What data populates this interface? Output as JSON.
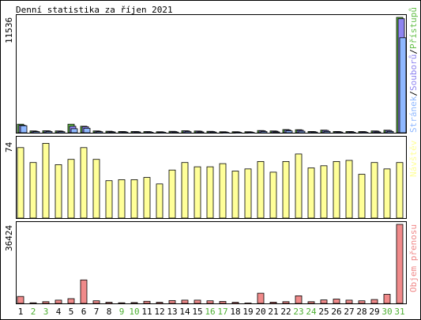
{
  "colors": {
    "background": "#ffffff",
    "frame": "#000000",
    "pages": "#8fb8ff",
    "files": "#8e84f0",
    "hits": "#66c04b",
    "visits": "#ffff99",
    "bytes": "#f08a8a",
    "weekend_label": "#4cae31"
  },
  "chart_data": [
    {
      "type": "bar",
      "title": "Denní statistika za říjen 2021",
      "y_max_label": "11536",
      "ylim": [
        0,
        11536
      ],
      "categories": [
        "1",
        "2",
        "3",
        "4",
        "5",
        "6",
        "7",
        "8",
        "9",
        "10",
        "11",
        "12",
        "13",
        "14",
        "15",
        "16",
        "17",
        "18",
        "19",
        "20",
        "21",
        "22",
        "23",
        "24",
        "25",
        "26",
        "27",
        "28",
        "29",
        "30",
        "31"
      ],
      "weekend_days": [
        "2",
        "3",
        "9",
        "10",
        "16",
        "17",
        "23",
        "24",
        "30",
        "31"
      ],
      "legend": "right (vertical)",
      "series": [
        {
          "name": "Přístupů",
          "color_key": "hits",
          "values": [
            850,
            180,
            200,
            180,
            850,
            650,
            180,
            150,
            130,
            130,
            120,
            100,
            140,
            200,
            170,
            140,
            100,
            100,
            100,
            220,
            180,
            320,
            300,
            130,
            260,
            130,
            130,
            120,
            180,
            250,
            11536
          ]
        },
        {
          "name": "Souborů",
          "color_key": "files",
          "values": [
            750,
            150,
            180,
            160,
            650,
            600,
            150,
            120,
            110,
            120,
            100,
            80,
            120,
            180,
            150,
            120,
            80,
            80,
            80,
            200,
            150,
            280,
            250,
            110,
            230,
            110,
            110,
            100,
            160,
            220,
            11400
          ]
        },
        {
          "name": "Stránek",
          "color_key": "pages",
          "values": [
            700,
            110,
            120,
            100,
            400,
            450,
            100,
            80,
            60,
            80,
            50,
            40,
            60,
            100,
            80,
            60,
            30,
            30,
            30,
            120,
            80,
            180,
            150,
            60,
            130,
            60,
            50,
            40,
            80,
            130,
            9500
          ]
        }
      ]
    },
    {
      "type": "bar",
      "y_max_label": "74",
      "ylim": [
        0,
        74
      ],
      "categories": [
        "1",
        "2",
        "3",
        "4",
        "5",
        "6",
        "7",
        "8",
        "9",
        "10",
        "11",
        "12",
        "13",
        "14",
        "15",
        "16",
        "17",
        "18",
        "19",
        "20",
        "21",
        "22",
        "23",
        "24",
        "25",
        "26",
        "27",
        "28",
        "29",
        "30",
        "31"
      ],
      "legend": "right (vertical)",
      "series": [
        {
          "name": "Návštěv",
          "color_key": "visits",
          "values": [
            66,
            52,
            70,
            50,
            55,
            66,
            55,
            35,
            36,
            36,
            38,
            32,
            45,
            52,
            48,
            48,
            51,
            44,
            46,
            53,
            43,
            53,
            60,
            47,
            49,
            53,
            54,
            41,
            52,
            46,
            52
          ]
        }
      ]
    },
    {
      "type": "bar",
      "y_max_label": "36424",
      "ylim": [
        0,
        36424
      ],
      "categories": [
        "1",
        "2",
        "3",
        "4",
        "5",
        "6",
        "7",
        "8",
        "9",
        "10",
        "11",
        "12",
        "13",
        "14",
        "15",
        "16",
        "17",
        "18",
        "19",
        "20",
        "21",
        "22",
        "23",
        "24",
        "25",
        "26",
        "27",
        "28",
        "29",
        "30",
        "31"
      ],
      "legend": "right (vertical)",
      "series": [
        {
          "name": "Objem přenosu",
          "color_key": "bytes",
          "values": [
            3200,
            300,
            800,
            1500,
            2200,
            10800,
            1200,
            500,
            300,
            400,
            1000,
            500,
            1300,
            1500,
            1500,
            1200,
            900,
            500,
            200,
            4700,
            600,
            800,
            3500,
            800,
            1600,
            2000,
            1500,
            1200,
            1800,
            4200,
            36424
          ]
        }
      ]
    }
  ]
}
